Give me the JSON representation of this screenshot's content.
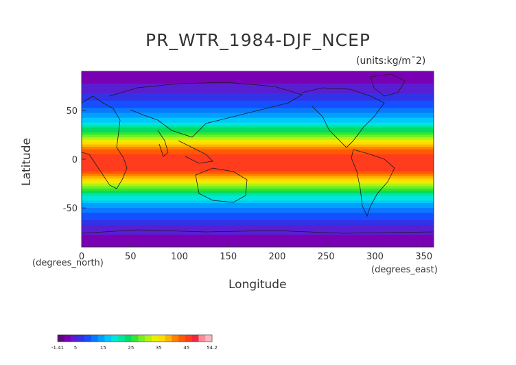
{
  "chart_data": {
    "type": "heatmap",
    "title": "PR_WTR_1984-DJF_NCEP",
    "units_label": "(units:kg/m¯2)",
    "xlabel": "Longitude",
    "ylabel": "Latitude",
    "x_unit": "(degrees_east)",
    "y_unit": "(degrees_north)",
    "xlim": [
      0,
      360
    ],
    "ylim": [
      -90,
      90
    ],
    "x_ticks": [
      0,
      50,
      100,
      150,
      200,
      250,
      300,
      350
    ],
    "y_ticks": [
      -50,
      0,
      50
    ],
    "colorbar": {
      "min": -1.41,
      "max": 54.2,
      "tick_labels": [
        "-1.41",
        "5",
        "15",
        "25",
        "35",
        "45",
        "54.2"
      ],
      "tick_values": [
        -1.41,
        5,
        15,
        25,
        35,
        45,
        54.2
      ],
      "colors": [
        "#5a0a7a",
        "#7a00b4",
        "#5a1ed2",
        "#3232e6",
        "#1450ff",
        "#0a78ff",
        "#00a0ff",
        "#00c8ff",
        "#00e6dc",
        "#00e6a0",
        "#00dc64",
        "#32e632",
        "#78ee1e",
        "#b4f014",
        "#e6f000",
        "#ffdc00",
        "#ffb400",
        "#ff8200",
        "#ff5a00",
        "#ff3c1e",
        "#f0283c",
        "#ff8c96",
        "#ffb4c3"
      ]
    },
    "field_by_latitude": [
      {
        "lat": 90,
        "value": 2
      },
      {
        "lat": 80,
        "value": 3
      },
      {
        "lat": 70,
        "value": 5
      },
      {
        "lat": 60,
        "value": 8
      },
      {
        "lat": 50,
        "value": 12
      },
      {
        "lat": 40,
        "value": 17
      },
      {
        "lat": 30,
        "value": 24
      },
      {
        "lat": 20,
        "value": 32
      },
      {
        "lat": 10,
        "value": 42
      },
      {
        "lat": 0,
        "value": 47
      },
      {
        "lat": -10,
        "value": 46
      },
      {
        "lat": -20,
        "value": 38
      },
      {
        "lat": -30,
        "value": 28
      },
      {
        "lat": -40,
        "value": 19
      },
      {
        "lat": -50,
        "value": 13
      },
      {
        "lat": -60,
        "value": 9
      },
      {
        "lat": -70,
        "value": 5
      },
      {
        "lat": -80,
        "value": 3
      },
      {
        "lat": -90,
        "value": 2
      }
    ]
  }
}
